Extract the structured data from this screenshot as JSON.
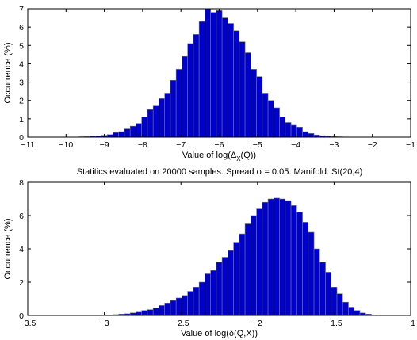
{
  "figure_title": "Statitics evaluated on 20000 samples. Spread σ = 0.05. Manifold: St(20,4)",
  "chart_data": [
    {
      "type": "bar",
      "title": "",
      "xlabel": "Value of log(Δ_X(Q))",
      "xlabel_parts": {
        "prefix": "Value of log(Δ",
        "sub": "X",
        "suffix": "(Q))"
      },
      "ylabel": "Occurrence (%)",
      "xlim": [
        -11,
        -1
      ],
      "ylim": [
        0,
        7
      ],
      "xticks": [
        -11,
        -10,
        -9,
        -8,
        -7,
        -6,
        -5,
        -4,
        -3,
        -2,
        -1
      ],
      "yticks": [
        0,
        1,
        2,
        3,
        4,
        5,
        6,
        7
      ],
      "bin_width": 0.15,
      "bin_centers": [
        -9.6,
        -9.45,
        -9.3,
        -9.15,
        -9.0,
        -8.85,
        -8.7,
        -8.55,
        -8.4,
        -8.25,
        -8.1,
        -7.95,
        -7.8,
        -7.65,
        -7.5,
        -7.35,
        -7.2,
        -7.05,
        -6.9,
        -6.75,
        -6.6,
        -6.45,
        -6.3,
        -6.15,
        -6.0,
        -5.85,
        -5.7,
        -5.55,
        -5.4,
        -5.25,
        -5.1,
        -4.95,
        -4.8,
        -4.65,
        -4.5,
        -4.35,
        -4.2,
        -4.05,
        -3.9,
        -3.75,
        -3.6,
        -3.45,
        -3.3,
        -3.15,
        -3.0,
        -2.85,
        -2.7
      ],
      "values": [
        0.02,
        0.03,
        0.05,
        0.07,
        0.1,
        0.14,
        0.25,
        0.3,
        0.45,
        0.6,
        0.75,
        1.1,
        1.5,
        1.7,
        2.1,
        2.4,
        3.1,
        3.7,
        4.4,
        5.1,
        5.6,
        6.3,
        7.0,
        6.8,
        6.9,
        6.5,
        6.2,
        5.8,
        5.2,
        4.6,
        3.7,
        3.3,
        2.4,
        2.0,
        1.6,
        1.1,
        0.8,
        0.65,
        0.55,
        0.3,
        0.2,
        0.12,
        0.08,
        0.05,
        0.03,
        0.02,
        0.01
      ]
    },
    {
      "type": "bar",
      "title": "",
      "xlabel": "Value of log(δ(Q,X))",
      "ylabel": "Occurrence (%)",
      "xlim": [
        -3.5,
        -1
      ],
      "ylim": [
        0,
        8
      ],
      "xticks": [
        -3.5,
        -3,
        -2.5,
        -2,
        -1.5,
        -1
      ],
      "yticks": [
        0,
        2,
        4,
        6,
        8
      ],
      "bin_width": 0.0375,
      "bin_centers": [
        -3.0,
        -2.9625,
        -2.925,
        -2.8875,
        -2.85,
        -2.8125,
        -2.775,
        -2.7375,
        -2.7,
        -2.6625,
        -2.625,
        -2.5875,
        -2.55,
        -2.5125,
        -2.475,
        -2.4375,
        -2.4,
        -2.3625,
        -2.325,
        -2.2875,
        -2.25,
        -2.2125,
        -2.175,
        -2.1375,
        -2.1,
        -2.0625,
        -2.025,
        -1.9875,
        -1.95,
        -1.9125,
        -1.875,
        -1.8375,
        -1.8,
        -1.7625,
        -1.725,
        -1.6875,
        -1.65,
        -1.6125,
        -1.575,
        -1.5375,
        -1.5,
        -1.4625,
        -1.425,
        -1.3875,
        -1.35,
        -1.3125,
        -1.275,
        -1.2375
      ],
      "values": [
        0.02,
        0.03,
        0.05,
        0.08,
        0.1,
        0.15,
        0.2,
        0.3,
        0.35,
        0.45,
        0.6,
        0.75,
        0.9,
        1.05,
        1.2,
        1.45,
        1.7,
        2.0,
        2.5,
        2.7,
        3.2,
        3.5,
        3.9,
        4.4,
        4.9,
        5.5,
        6.0,
        6.4,
        6.8,
        7.0,
        7.05,
        7.0,
        6.9,
        6.6,
        6.2,
        5.6,
        5.0,
        4.0,
        3.2,
        2.6,
        1.7,
        1.3,
        0.8,
        0.5,
        0.3,
        0.15,
        0.08,
        0.03
      ]
    }
  ]
}
